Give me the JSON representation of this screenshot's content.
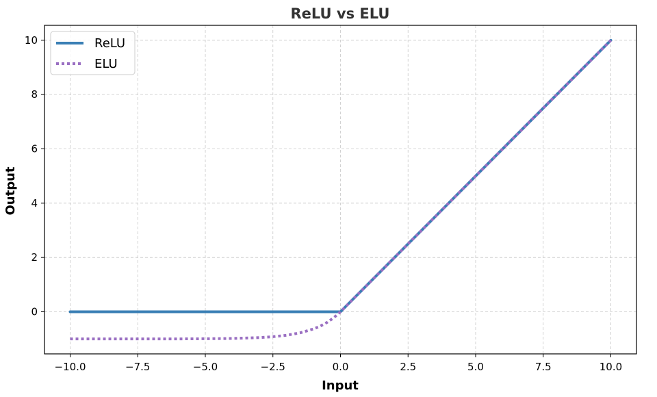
{
  "chart_data": {
    "type": "line",
    "title": "ReLU vs ELU",
    "xlabel": "Input",
    "ylabel": "Output",
    "xlim": [
      -10.95,
      10.95
    ],
    "ylim": [
      -1.55,
      10.55
    ],
    "xticks": [
      -10.0,
      -7.5,
      -5.0,
      -2.5,
      0.0,
      2.5,
      5.0,
      7.5,
      10.0
    ],
    "xtick_labels": [
      "−10.0",
      "−7.5",
      "−5.0",
      "−2.5",
      "0.0",
      "2.5",
      "5.0",
      "7.5",
      "10.0"
    ],
    "yticks": [
      0,
      2,
      4,
      6,
      8,
      10
    ],
    "ytick_labels": [
      "0",
      "2",
      "4",
      "6",
      "8",
      "10"
    ],
    "grid": true,
    "legend_position": "top-left",
    "series": [
      {
        "name": "ReLU",
        "color": "#3a7fb5",
        "style": "solid",
        "x": [
          -10.0,
          0.0,
          10.0
        ],
        "y": [
          0.0,
          0.0,
          10.0
        ]
      },
      {
        "name": "ELU",
        "color": "#9a6fc2",
        "style": "dotted",
        "x": [
          -10.0,
          -8.0,
          -6.0,
          -5.0,
          -4.0,
          -3.0,
          -2.5,
          -2.0,
          -1.5,
          -1.0,
          -0.75,
          -0.5,
          -0.25,
          0.0,
          10.0
        ],
        "y": [
          -1.0,
          -1.0,
          -0.998,
          -0.993,
          -0.982,
          -0.95,
          -0.918,
          -0.865,
          -0.777,
          -0.632,
          -0.528,
          -0.393,
          -0.221,
          0.0,
          10.0
        ]
      }
    ]
  }
}
